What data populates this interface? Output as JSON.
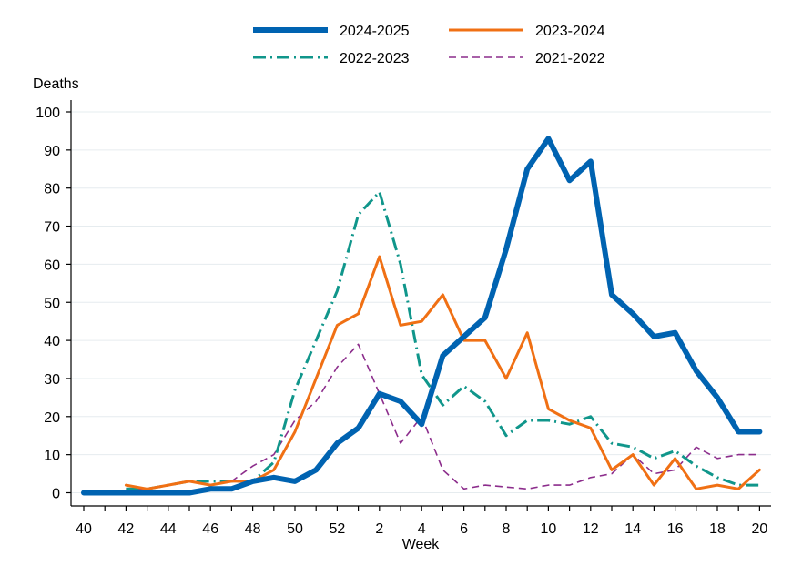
{
  "chart_data": {
    "type": "line",
    "title": "",
    "xlabel": "Week",
    "ylabel": "Deaths",
    "ylim": [
      0,
      100
    ],
    "yticks": [
      0,
      10,
      20,
      30,
      40,
      50,
      60,
      70,
      80,
      90,
      100
    ],
    "x_tick_labels": [
      "40",
      "42",
      "44",
      "46",
      "48",
      "50",
      "52",
      "2",
      "4",
      "6",
      "8",
      "10",
      "12",
      "14",
      "16",
      "18",
      "20"
    ],
    "weeks": [
      "40",
      "41",
      "42",
      "43",
      "44",
      "45",
      "46",
      "47",
      "48",
      "49",
      "50",
      "51",
      "52",
      "1",
      "2",
      "3",
      "4",
      "5",
      "6",
      "7",
      "8",
      "9",
      "10",
      "11",
      "12",
      "13",
      "14",
      "15",
      "16",
      "17",
      "18",
      "19",
      "20"
    ],
    "grid": true,
    "legend_position": "top",
    "series": [
      {
        "name": "2024-2025",
        "color": "#0063b1",
        "style": "solid-thick",
        "values": [
          0,
          0,
          0,
          0,
          0,
          0,
          1,
          1,
          3,
          4,
          3,
          6,
          13,
          17,
          26,
          24,
          18,
          36,
          41,
          46,
          64,
          85,
          93,
          82,
          87,
          52,
          47,
          41,
          42,
          32,
          25,
          16,
          16
        ]
      },
      {
        "name": "2023-2024",
        "color": "#f07014",
        "style": "solid",
        "values": [
          null,
          null,
          2,
          1,
          2,
          3,
          2,
          3,
          3,
          6,
          16,
          30,
          44,
          47,
          62,
          44,
          45,
          52,
          40,
          40,
          30,
          42,
          22,
          19,
          17,
          6,
          10,
          2,
          9,
          1,
          2,
          1,
          6
        ]
      },
      {
        "name": "2022-2023",
        "color": "#10968b",
        "style": "dash-dot",
        "values": [
          null,
          null,
          1,
          1,
          2,
          3,
          3,
          3,
          3,
          8,
          27,
          40,
          53,
          73,
          79,
          60,
          31,
          23,
          28,
          24,
          15,
          19,
          19,
          18,
          20,
          13,
          12,
          9,
          11,
          7,
          4,
          2,
          2
        ]
      },
      {
        "name": "2021-2022",
        "color": "#8c2d8c",
        "style": "dashed",
        "values": [
          null,
          null,
          1,
          1,
          2,
          3,
          2,
          3,
          7,
          10,
          19,
          24,
          33,
          39,
          26,
          13,
          20,
          6,
          1,
          2,
          1.5,
          1,
          2,
          2,
          4,
          5,
          10,
          5,
          6,
          12,
          9,
          10,
          10
        ]
      }
    ]
  }
}
